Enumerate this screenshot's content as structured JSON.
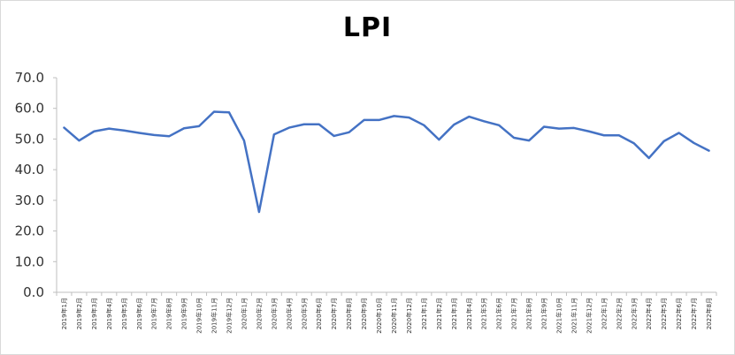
{
  "chart_data": {
    "type": "line",
    "title": "LPI",
    "xlabel": "",
    "ylabel": "",
    "ylim": [
      0,
      70
    ],
    "yticks": [
      "0.0",
      "10.0",
      "20.0",
      "30.0",
      "40.0",
      "50.0",
      "60.0",
      "70.0"
    ],
    "grid": false,
    "legend": "none",
    "line_color": "#4472C4",
    "categories": [
      "2019年1月",
      "2019年2月",
      "2019年3月",
      "2019年4月",
      "2019年5月",
      "2019年6月",
      "2019年7月",
      "2019年8月",
      "2019年9月",
      "2019年10月",
      "2019年11月",
      "2019年12月",
      "2020年1月",
      "2020年2月",
      "2020年3月",
      "2020年4月",
      "2020年5月",
      "2020年6月",
      "2020年7月",
      "2020年8月",
      "2020年9月",
      "2020年10月",
      "2020年11月",
      "2020年12月",
      "2021年1月",
      "2021年2月",
      "2021年3月",
      "2021年4月",
      "2021年5月",
      "2021年6月",
      "2021年7月",
      "2021年8月",
      "2021年9月",
      "2021年10月",
      "2021年11月",
      "2021年12月",
      "2022年1月",
      "2022年2月",
      "2022年3月",
      "2022年4月",
      "2022年5月",
      "2022年6月",
      "2022年7月",
      "2022年8月"
    ],
    "values": [
      53.7,
      49.5,
      52.5,
      53.4,
      52.8,
      52.0,
      51.3,
      50.9,
      53.5,
      54.2,
      58.9,
      58.7,
      49.5,
      26.2,
      51.5,
      53.7,
      54.8,
      54.8,
      51.0,
      52.2,
      56.2,
      56.2,
      57.5,
      57.0,
      54.5,
      49.8,
      54.7,
      57.3,
      55.8,
      54.5,
      50.4,
      49.5,
      54.0,
      53.4,
      53.6,
      52.5,
      51.2,
      51.2,
      48.6,
      43.8,
      49.3,
      52.0,
      48.7,
      46.2
    ]
  }
}
